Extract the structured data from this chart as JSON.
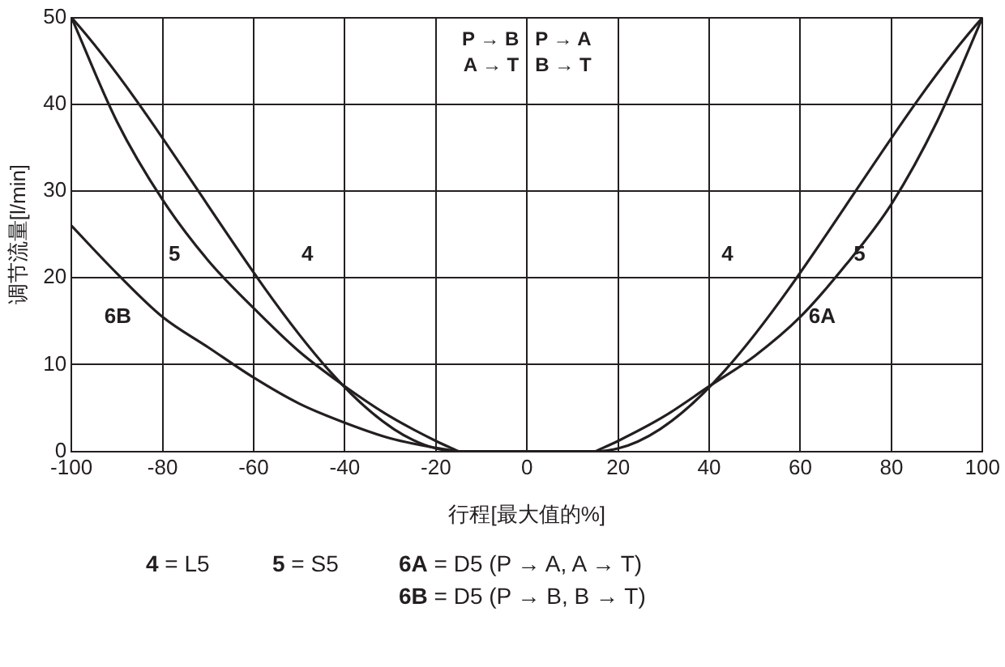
{
  "chart_data": {
    "type": "line",
    "xlabel": "行程[最大值的%]",
    "ylabel": "调节流量[l/min]",
    "xlim": [
      -100,
      100
    ],
    "xticks": [
      -100,
      -80,
      -60,
      -40,
      -20,
      0,
      20,
      40,
      60,
      80,
      100
    ],
    "ylim": [
      0,
      50
    ],
    "yticks": [
      0,
      10,
      20,
      30,
      40,
      50
    ],
    "grid": true,
    "legend": false,
    "marker": "none",
    "line_style": "solid",
    "series": [
      {
        "color": "#231f20",
        "x": [
          -100,
          -15,
          15,
          100
        ],
        "values": [
          50,
          0,
          0,
          50
        ]
      },
      {
        "color": "#231f20",
        "x": [
          -100,
          -90,
          -80,
          -70,
          -60,
          -50,
          -40,
          -30,
          -20,
          -15
        ],
        "values": [
          50,
          38,
          29,
          22,
          16.5,
          11.5,
          7.5,
          4,
          1.2,
          0
        ]
      },
      {
        "color": "#231f20",
        "x": [
          15,
          20,
          30,
          40,
          50,
          60,
          70,
          80,
          90,
          100
        ],
        "values": [
          0,
          1.2,
          4,
          7.5,
          11,
          15.5,
          21.5,
          28.5,
          38,
          50
        ]
      },
      {
        "color": "#231f20",
        "x": [
          -100,
          -90,
          -80,
          -70,
          -60,
          -50,
          -40,
          -30,
          -20,
          -15
        ],
        "values": [
          26,
          20.5,
          15.5,
          12,
          8.5,
          5.5,
          3.3,
          1.5,
          0.4,
          0
        ]
      }
    ],
    "annotations": [
      "4",
      "5",
      "6B",
      "4",
      "5",
      "6A",
      "P → B",
      "A → T",
      "P → A",
      "B → T",
      "4 = L5",
      "5 = S5",
      "6A = D5 (P → A, A → T)",
      "6B = D5 (P → B, B → T)"
    ]
  }
}
